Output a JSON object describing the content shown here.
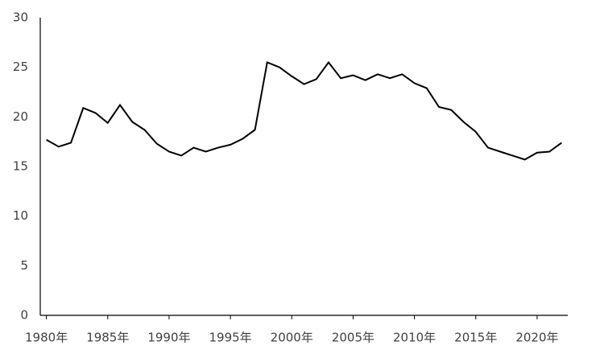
{
  "chart_data": {
    "type": "line",
    "x": [
      1980,
      1981,
      1982,
      1983,
      1984,
      1985,
      1986,
      1987,
      1988,
      1989,
      1990,
      1991,
      1992,
      1993,
      1994,
      1995,
      1996,
      1997,
      1998,
      1999,
      2000,
      2001,
      2002,
      2003,
      2004,
      2005,
      2006,
      2007,
      2008,
      2009,
      2010,
      2011,
      2012,
      2013,
      2014,
      2015,
      2016,
      2017,
      2018,
      2019,
      2020,
      2021,
      2022
    ],
    "values": [
      17.7,
      17.0,
      17.4,
      20.9,
      20.4,
      19.4,
      21.2,
      19.5,
      18.7,
      17.3,
      16.5,
      16.1,
      16.9,
      16.5,
      16.9,
      17.2,
      17.8,
      18.7,
      25.5,
      25.0,
      24.1,
      23.3,
      23.8,
      25.5,
      23.9,
      24.2,
      23.7,
      24.3,
      23.9,
      24.3,
      23.4,
      22.9,
      21.0,
      20.7,
      19.5,
      18.5,
      16.9,
      16.5,
      16.1,
      15.7,
      16.4,
      16.5,
      17.4
    ],
    "color": "#000000",
    "xlim": [
      1979.5,
      2022.5
    ],
    "xticks": [
      {
        "value": 1980,
        "label": "1980年"
      },
      {
        "value": 1985,
        "label": "1985年"
      },
      {
        "value": 1990,
        "label": "1990年"
      },
      {
        "value": 1995,
        "label": "1995年"
      },
      {
        "value": 2000,
        "label": "2000年"
      },
      {
        "value": 2005,
        "label": "2005年"
      },
      {
        "value": 2010,
        "label": "2010年"
      },
      {
        "value": 2015,
        "label": "2015年"
      },
      {
        "value": 2020,
        "label": "2020年"
      }
    ],
    "ylim": [
      0,
      30
    ],
    "yticks": [
      0,
      5,
      10,
      15,
      20,
      25,
      30
    ],
    "grid": false
  }
}
